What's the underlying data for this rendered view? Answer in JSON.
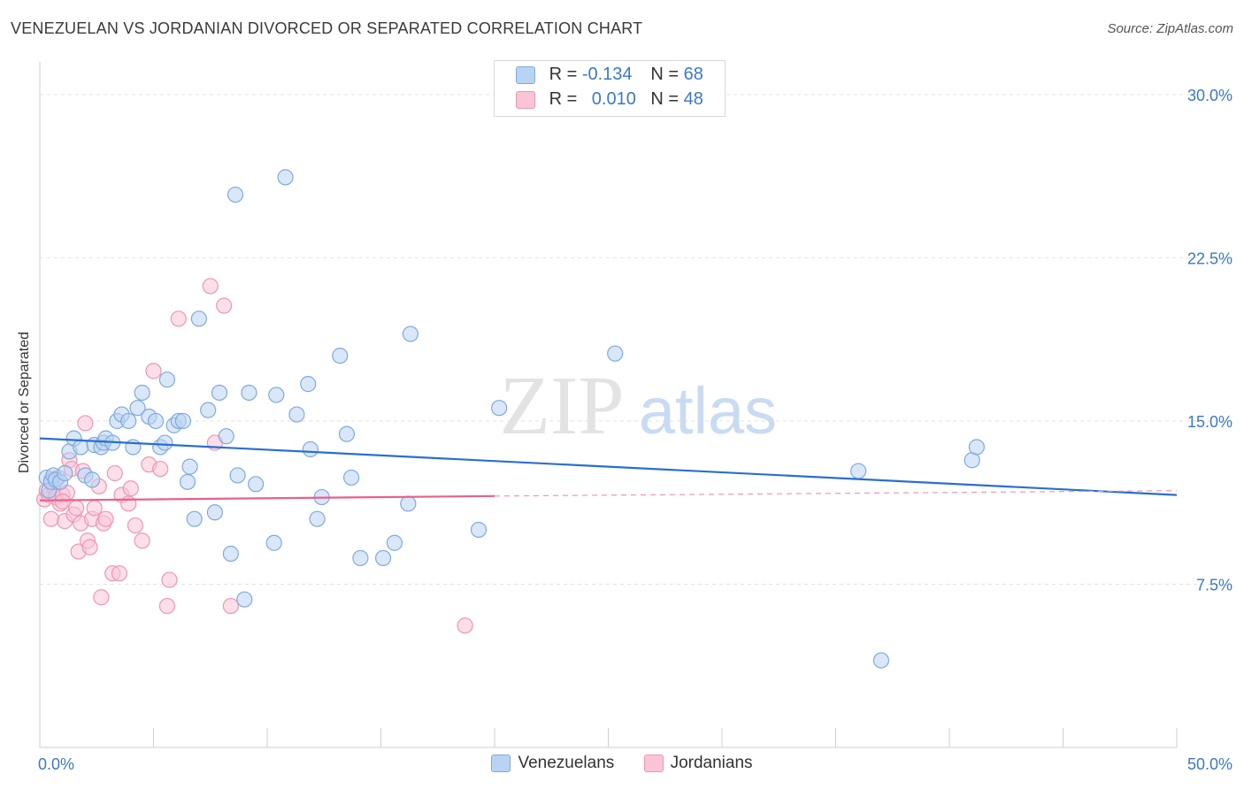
{
  "title": "VENEZUELAN VS JORDANIAN DIVORCED OR SEPARATED CORRELATION CHART",
  "source": "Source: ZipAtlas.com",
  "watermark": {
    "zip": "ZIP",
    "atlas": "atlas"
  },
  "stats": [
    {
      "r_label": "R =",
      "r_value": "-0.134",
      "n_label": "N =",
      "n_value": "68"
    },
    {
      "r_label": "R =",
      "r_value": "0.010",
      "n_label": "N =",
      "n_value": "48"
    }
  ],
  "legend": {
    "venezuelans": "Venezuelans",
    "jordanians": "Jordanians"
  },
  "colors": {
    "venezuelans_fill": "#b9d3f3",
    "venezuelans_stroke": "#7eaadf",
    "venezuelans_line": "#2a6fcf",
    "jordanians_fill": "#f9c5d6",
    "jordanians_stroke": "#ef95b3",
    "jordanians_line": "#e8608c",
    "tick_label": "#3b78c9"
  },
  "chart_data": {
    "type": "scatter",
    "title": "VENEZUELAN VS JORDANIAN DIVORCED OR SEPARATED CORRELATION CHART",
    "xlabel": "",
    "ylabel": "Divorced or Separated",
    "xlim": [
      0,
      50
    ],
    "ylim": [
      0,
      31.5
    ],
    "x_tick_labels": [
      "0.0%",
      "50.0%"
    ],
    "y_ticks": [
      7.5,
      15.0,
      22.5,
      30.0
    ],
    "y_tick_labels": [
      "7.5%",
      "15.0%",
      "22.5%",
      "30.0%"
    ],
    "grid": true,
    "legend_position": "bottom",
    "series": [
      {
        "name": "Venezuelans",
        "r": -0.134,
        "n": 68,
        "trend": {
          "x": [
            0,
            50
          ],
          "y": [
            14.2,
            11.6
          ]
        },
        "points": [
          [
            0.3,
            12.4
          ],
          [
            0.4,
            11.8
          ],
          [
            0.5,
            12.2
          ],
          [
            0.6,
            12.5
          ],
          [
            0.7,
            12.3
          ],
          [
            0.9,
            12.2
          ],
          [
            1.1,
            12.6
          ],
          [
            1.3,
            13.6
          ],
          [
            1.5,
            14.2
          ],
          [
            1.8,
            13.8
          ],
          [
            2.0,
            12.5
          ],
          [
            2.3,
            12.3
          ],
          [
            2.4,
            13.9
          ],
          [
            2.7,
            13.8
          ],
          [
            2.8,
            14.0
          ],
          [
            2.9,
            14.2
          ],
          [
            3.2,
            14.0
          ],
          [
            3.4,
            15.0
          ],
          [
            3.6,
            15.3
          ],
          [
            3.9,
            15.0
          ],
          [
            4.1,
            13.8
          ],
          [
            4.3,
            15.6
          ],
          [
            4.5,
            16.3
          ],
          [
            4.8,
            15.2
          ],
          [
            5.1,
            15.0
          ],
          [
            5.3,
            13.8
          ],
          [
            5.5,
            14.0
          ],
          [
            5.6,
            16.9
          ],
          [
            5.9,
            14.8
          ],
          [
            6.1,
            15.0
          ],
          [
            6.3,
            15.0
          ],
          [
            6.5,
            12.2
          ],
          [
            6.6,
            12.9
          ],
          [
            6.8,
            10.5
          ],
          [
            7.0,
            19.7
          ],
          [
            7.4,
            15.5
          ],
          [
            7.7,
            10.8
          ],
          [
            7.9,
            16.3
          ],
          [
            8.2,
            14.3
          ],
          [
            8.4,
            8.9
          ],
          [
            8.6,
            25.4
          ],
          [
            8.7,
            12.5
          ],
          [
            9.0,
            6.8
          ],
          [
            9.2,
            16.3
          ],
          [
            9.5,
            12.1
          ],
          [
            10.3,
            9.4
          ],
          [
            10.4,
            16.2
          ],
          [
            10.8,
            26.2
          ],
          [
            11.3,
            15.3
          ],
          [
            11.8,
            16.7
          ],
          [
            11.9,
            13.7
          ],
          [
            12.2,
            10.5
          ],
          [
            12.4,
            11.5
          ],
          [
            13.2,
            18.0
          ],
          [
            13.5,
            14.4
          ],
          [
            13.7,
            12.4
          ],
          [
            14.1,
            8.7
          ],
          [
            15.1,
            8.7
          ],
          [
            15.6,
            9.4
          ],
          [
            16.2,
            11.2
          ],
          [
            16.3,
            19.0
          ],
          [
            19.3,
            10.0
          ],
          [
            20.2,
            15.6
          ],
          [
            25.3,
            18.1
          ],
          [
            36.0,
            12.7
          ],
          [
            37.0,
            4.0
          ],
          [
            41.0,
            13.2
          ],
          [
            41.2,
            13.8
          ]
        ]
      },
      {
        "name": "Jordanians",
        "r": 0.01,
        "n": 48,
        "trend": {
          "x": [
            0,
            20
          ],
          "y": [
            11.35,
            11.55
          ]
        },
        "trend_extension": {
          "x": [
            20,
            50
          ],
          "y": [
            11.55,
            11.8
          ]
        },
        "points": [
          [
            0.2,
            11.4
          ],
          [
            0.3,
            11.8
          ],
          [
            0.4,
            11.6
          ],
          [
            0.5,
            10.5
          ],
          [
            0.6,
            12.0
          ],
          [
            0.7,
            11.5
          ],
          [
            0.8,
            12.4
          ],
          [
            0.9,
            11.2
          ],
          [
            1.0,
            11.6
          ],
          [
            1.1,
            10.4
          ],
          [
            1.2,
            11.7
          ],
          [
            1.3,
            13.2
          ],
          [
            1.4,
            12.8
          ],
          [
            1.5,
            10.7
          ],
          [
            1.6,
            11.0
          ],
          [
            1.7,
            9.0
          ],
          [
            1.8,
            10.3
          ],
          [
            1.9,
            12.7
          ],
          [
            2.0,
            14.9
          ],
          [
            2.1,
            9.5
          ],
          [
            2.2,
            9.2
          ],
          [
            2.3,
            10.5
          ],
          [
            2.4,
            11.0
          ],
          [
            2.6,
            12.0
          ],
          [
            2.7,
            6.9
          ],
          [
            2.8,
            10.3
          ],
          [
            2.9,
            10.5
          ],
          [
            3.2,
            8.0
          ],
          [
            3.3,
            12.6
          ],
          [
            3.5,
            8.0
          ],
          [
            3.6,
            11.6
          ],
          [
            3.9,
            11.2
          ],
          [
            4.0,
            11.9
          ],
          [
            4.2,
            10.2
          ],
          [
            4.5,
            9.5
          ],
          [
            4.8,
            13.0
          ],
          [
            5.0,
            17.3
          ],
          [
            5.3,
            12.8
          ],
          [
            5.6,
            6.5
          ],
          [
            5.7,
            7.7
          ],
          [
            6.1,
            19.7
          ],
          [
            7.5,
            21.2
          ],
          [
            7.7,
            14.0
          ],
          [
            8.1,
            20.3
          ],
          [
            8.4,
            6.5
          ],
          [
            18.7,
            5.6
          ],
          [
            0.5,
            12.3
          ],
          [
            1.0,
            11.3
          ]
        ]
      }
    ]
  }
}
